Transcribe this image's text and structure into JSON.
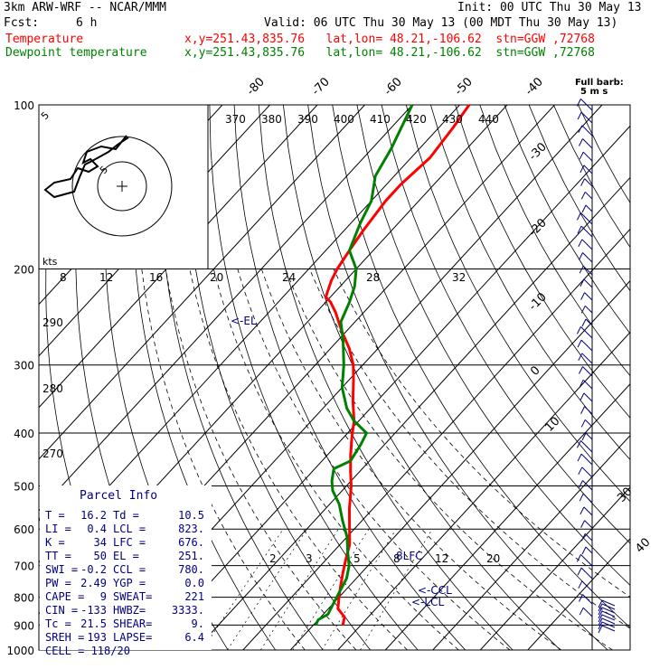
{
  "header": {
    "model": "3km ARW-WRF -- NCAR/MMM",
    "init": "Init: 00 UTC Thu 30 May 13",
    "fcst_label": "Fcst:",
    "fcst_value": "6 h",
    "valid": "Valid: 06 UTC Thu 30 May 13 (00 MDT Thu 30 May 13)",
    "temp_name": "Temperature",
    "temp_loc": "x,y=251.43,835.76   lat,lon= 48.21,-106.62  stn=GGW ,72768",
    "dew_name": "Dewpoint temperature",
    "dew_loc": "x,y=251.43,835.76   lat,lon= 48.21,-106.62  stn=GGW ,72768"
  },
  "colors": {
    "temperature": "#ff0000",
    "dewpoint": "#008000",
    "wind": "#000080",
    "parcel_text": "#000080",
    "grid": "#000000"
  },
  "legend": {
    "barb_title": "Full barb:",
    "barb_value": "5 m s",
    "kts": "kts"
  },
  "chart_data": {
    "type": "line",
    "title": "",
    "pressure_levels": [
      "100",
      "200",
      "300",
      "400",
      "500",
      "600",
      "700",
      "800",
      "900",
      "1000"
    ],
    "isotherm_labels": [
      "-80",
      "-70",
      "-60",
      "-50",
      "-40",
      "-30",
      "-20",
      "-10",
      "0",
      "10",
      "30",
      "40"
    ],
    "mixing_ratio_labels": [
      "2",
      "3",
      "5",
      "8",
      "12",
      "20"
    ],
    "theta_e_labels": [
      "370",
      "380",
      "390",
      "400",
      "410",
      "420",
      "430",
      "440"
    ],
    "hodograph_speed_labels": [
      "8",
      "12",
      "16",
      "20",
      "24",
      "28",
      "32"
    ],
    "hodograph_ring_labels": [
      "5",
      "5"
    ],
    "theta_labels": [
      "290",
      "280",
      "270"
    ],
    "level_labels": [
      "<-EL",
      "8LFC",
      "<-CCL",
      "<-LCL"
    ],
    "series": [
      {
        "name": "Temperature",
        "points": [
          [
            900,
            16.2
          ],
          [
            870,
            15
          ],
          [
            840,
            12
          ],
          [
            800,
            10
          ],
          [
            760,
            8
          ],
          [
            720,
            6
          ],
          [
            680,
            4
          ],
          [
            640,
            2
          ],
          [
            600,
            -1
          ],
          [
            550,
            -5
          ],
          [
            500,
            -9
          ],
          [
            470,
            -12
          ],
          [
            440,
            -15
          ],
          [
            410,
            -18
          ],
          [
            400,
            -19
          ],
          [
            380,
            -21
          ],
          [
            350,
            -25
          ],
          [
            320,
            -29
          ],
          [
            300,
            -32
          ],
          [
            280,
            -36
          ],
          [
            260,
            -41
          ],
          [
            240,
            -46
          ],
          [
            230,
            -49
          ],
          [
            225,
            -51
          ],
          [
            210,
            -53
          ],
          [
            200,
            -54
          ],
          [
            185,
            -55
          ],
          [
            170,
            -56
          ],
          [
            150,
            -57
          ],
          [
            140,
            -57
          ],
          [
            125,
            -56
          ],
          [
            110,
            -57
          ],
          [
            100,
            -58
          ]
        ]
      },
      {
        "name": "Dewpoint temperature",
        "points": [
          [
            900,
            10.5
          ],
          [
            880,
            10
          ],
          [
            860,
            11
          ],
          [
            820,
            10
          ],
          [
            780,
            9
          ],
          [
            740,
            8
          ],
          [
            700,
            6
          ],
          [
            660,
            3
          ],
          [
            620,
            0
          ],
          [
            580,
            -4
          ],
          [
            540,
            -8
          ],
          [
            510,
            -12
          ],
          [
            490,
            -14
          ],
          [
            465,
            -16
          ],
          [
            450,
            -14
          ],
          [
            420,
            -15
          ],
          [
            400,
            -16
          ],
          [
            380,
            -21
          ],
          [
            360,
            -25
          ],
          [
            330,
            -30
          ],
          [
            300,
            -34
          ],
          [
            270,
            -39
          ],
          [
            250,
            -43
          ],
          [
            230,
            -45
          ],
          [
            215,
            -47
          ],
          [
            200,
            -50
          ],
          [
            185,
            -55
          ],
          [
            165,
            -58
          ],
          [
            150,
            -60
          ],
          [
            135,
            -64
          ],
          [
            120,
            -66
          ],
          [
            100,
            -70
          ]
        ]
      }
    ],
    "parcel_info": {
      "title": "Parcel Info",
      "rows": [
        [
          "T  =",
          "16.2",
          "Td =",
          "10.5"
        ],
        [
          "LI =",
          "0.4",
          "LCL =",
          "823."
        ],
        [
          "K  =",
          "34",
          "LFC =",
          "676."
        ],
        [
          "TT =",
          "50",
          "EL  =",
          "251."
        ],
        [
          "SWI =",
          "-0.2",
          "CCL =",
          "780."
        ],
        [
          "PW =",
          "2.49",
          "YGP =",
          "0.0"
        ],
        [
          "CAPE =",
          "9",
          "SWEAT=",
          "221"
        ],
        [
          "CIN =",
          "-133",
          "HWBZ=",
          "3333."
        ],
        [
          "Tc =",
          "21.5",
          "SHEAR=",
          "9."
        ],
        [
          "SREH =",
          "193",
          "LAPSE=",
          "6.4"
        ]
      ],
      "last_row": "CELL = 118/20"
    }
  }
}
